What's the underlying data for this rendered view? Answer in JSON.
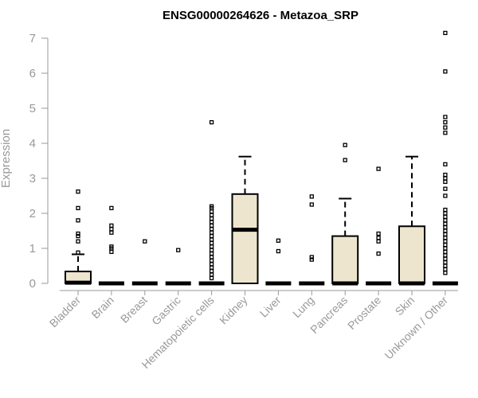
{
  "chart_data": {
    "type": "box",
    "title": "ENSG00000264626 - Metazoa_SRP",
    "xlabel": "",
    "ylabel": "Expression",
    "ylim": [
      0,
      7.2
    ],
    "yticks": [
      0,
      1,
      2,
      3,
      4,
      5,
      6,
      7
    ],
    "grid": false,
    "colors": {
      "box_fill": "#ede5cd",
      "box_stroke": "#000000",
      "axis": "#999999"
    },
    "categories": [
      "Bladder",
      "Brain",
      "Breast",
      "Gastric",
      "Hematopoietic cells",
      "Kidney",
      "Liver",
      "Lung",
      "Pancreas",
      "Prostate",
      "Skin",
      "Unknown / Other"
    ],
    "boxes": [
      {
        "category": "Bladder",
        "q1": 0,
        "median": 0.02,
        "q3": 0.34,
        "whisker_low": 0,
        "whisker_high": 0.83,
        "outliers": [
          0.88,
          1.2,
          1.35,
          1.42,
          1.8,
          2.15,
          2.62
        ]
      },
      {
        "category": "Brain",
        "q1": 0,
        "median": 0,
        "q3": 0,
        "whisker_low": 0,
        "whisker_high": 0,
        "outliers": [
          0.9,
          1.0,
          1.05,
          1.45,
          1.55,
          1.65,
          2.15
        ]
      },
      {
        "category": "Breast",
        "q1": 0,
        "median": 0,
        "q3": 0,
        "whisker_low": 0,
        "whisker_high": 0,
        "outliers": [
          1.2
        ]
      },
      {
        "category": "Gastric",
        "q1": 0,
        "median": 0,
        "q3": 0,
        "whisker_low": 0,
        "whisker_high": 0,
        "outliers": [
          0.95
        ]
      },
      {
        "category": "Hematopoietic cells",
        "q1": 0,
        "median": 0,
        "q3": 0,
        "whisker_low": 0,
        "whisker_high": 0,
        "outliers": [
          0.15,
          0.25,
          0.35,
          0.45,
          0.55,
          0.65,
          0.75,
          0.85,
          0.95,
          1.05,
          1.15,
          1.25,
          1.35,
          1.45,
          1.55,
          1.65,
          1.75,
          1.85,
          1.95,
          2.05,
          2.15,
          2.2,
          4.6
        ]
      },
      {
        "category": "Kidney",
        "q1": 0,
        "median": 1.53,
        "q3": 2.55,
        "whisker_low": 0,
        "whisker_high": 3.62,
        "outliers": []
      },
      {
        "category": "Liver",
        "q1": 0,
        "median": 0,
        "q3": 0,
        "whisker_low": 0,
        "whisker_high": 0,
        "outliers": [
          0.92,
          1.22
        ]
      },
      {
        "category": "Lung",
        "q1": 0,
        "median": 0,
        "q3": 0,
        "whisker_low": 0,
        "whisker_high": 0,
        "outliers": [
          0.68,
          0.75,
          2.25,
          2.48
        ]
      },
      {
        "category": "Pancreas",
        "q1": 0,
        "median": 0,
        "q3": 1.35,
        "whisker_low": 0,
        "whisker_high": 2.42,
        "outliers": [
          3.52,
          3.95
        ]
      },
      {
        "category": "Prostate",
        "q1": 0,
        "median": 0,
        "q3": 0,
        "whisker_low": 0,
        "whisker_high": 0,
        "outliers": [
          0.85,
          1.2,
          1.3,
          1.42,
          3.27
        ]
      },
      {
        "category": "Skin",
        "q1": 0,
        "median": 0,
        "q3": 1.63,
        "whisker_low": 0,
        "whisker_high": 3.62,
        "outliers": []
      },
      {
        "category": "Unknown / Other",
        "q1": 0,
        "median": 0,
        "q3": 0,
        "whisker_low": 0,
        "whisker_high": 0,
        "outliers": [
          0.3,
          0.4,
          0.5,
          0.6,
          0.7,
          0.8,
          0.9,
          1.0,
          1.1,
          1.2,
          1.3,
          1.4,
          1.5,
          1.6,
          1.7,
          1.8,
          1.9,
          2.0,
          2.1,
          2.5,
          2.7,
          2.9,
          3.0,
          3.1,
          3.4,
          4.3,
          4.45,
          4.6,
          4.75,
          6.05,
          7.15
        ]
      }
    ]
  }
}
